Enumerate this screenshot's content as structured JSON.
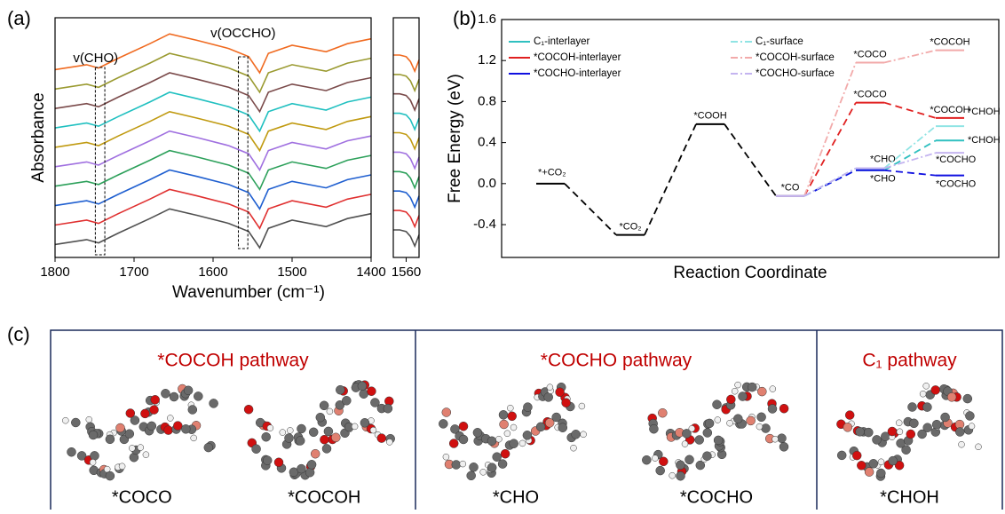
{
  "panel_labels": [
    "(a)",
    "(b)",
    "(c)"
  ],
  "chart_data": [
    {
      "type": "line",
      "x_label": "Wavenumber (cm⁻¹)",
      "y_label": "Absorbance",
      "xlim": [
        1800,
        1400
      ],
      "xticks": [
        1800,
        1700,
        1600,
        1500,
        1400
      ],
      "ylim": [
        -0.8,
        14
      ],
      "x": [
        1800,
        1760,
        1745,
        1720,
        1680,
        1655,
        1620,
        1580,
        1555,
        1541,
        1530,
        1500,
        1457,
        1430,
        1400
      ],
      "series": [
        {
          "color": "#505050",
          "values": [
            0,
            0.3,
            0.1,
            0.7,
            1.6,
            2.2,
            1.8,
            1.3,
            0.8,
            -0.2,
            1,
            1.5,
            1.1,
            1.6,
            1.9
          ]
        },
        {
          "color": "#e03030",
          "values": [
            1.2,
            1.5,
            1.3,
            1.9,
            2.8,
            3.4,
            3,
            2.5,
            2,
            1,
            2.2,
            2.7,
            2.3,
            2.8,
            3.1
          ]
        },
        {
          "color": "#1f5fd0",
          "values": [
            2.4,
            2.7,
            2.5,
            3.1,
            4,
            4.6,
            4.2,
            3.7,
            3.2,
            2.2,
            3.4,
            3.9,
            3.5,
            4,
            4.3
          ]
        },
        {
          "color": "#2ca05a",
          "values": [
            3.6,
            3.9,
            3.7,
            4.3,
            5.2,
            5.8,
            5.4,
            4.9,
            4.4,
            3.4,
            4.6,
            5.1,
            4.7,
            5.2,
            5.5
          ]
        },
        {
          "color": "#a070e0",
          "values": [
            4.8,
            5.1,
            4.9,
            5.5,
            6.4,
            7,
            6.6,
            6.1,
            5.6,
            4.6,
            5.8,
            6.3,
            5.9,
            6.4,
            6.7
          ]
        },
        {
          "color": "#c09a10",
          "values": [
            6,
            6.3,
            6.1,
            6.7,
            7.6,
            8.2,
            7.8,
            7.3,
            6.8,
            5.8,
            7,
            7.5,
            7.1,
            7.6,
            7.9
          ]
        },
        {
          "color": "#20c0c0",
          "values": [
            7.2,
            7.5,
            7.3,
            7.9,
            8.8,
            9.4,
            9,
            8.5,
            8,
            7,
            8.2,
            8.7,
            8.3,
            8.8,
            9.1
          ]
        },
        {
          "color": "#7a4a4a",
          "values": [
            8.4,
            8.7,
            8.5,
            9.1,
            10,
            10.6,
            10.2,
            9.7,
            9.2,
            8.2,
            9.4,
            9.9,
            9.5,
            10,
            10.3
          ]
        },
        {
          "color": "#9a9a30",
          "values": [
            9.6,
            9.9,
            9.7,
            10.3,
            11.2,
            11.8,
            11.4,
            10.9,
            10.4,
            9.4,
            10.6,
            11.1,
            10.7,
            11.2,
            11.5
          ]
        },
        {
          "color": "#f06a20",
          "values": [
            10.8,
            11.1,
            10.9,
            11.5,
            12.4,
            13,
            12.6,
            12.1,
            11.6,
            10.6,
            11.8,
            12.3,
            11.9,
            12.4,
            12.7
          ]
        }
      ],
      "annotations": [
        {
          "text": "v(CHO)",
          "x_range": [
            1749,
            1737
          ]
        },
        {
          "text": "v(OCCHO)",
          "x_range": [
            1568,
            1556
          ]
        }
      ]
    },
    {
      "type": "line",
      "xlim": [
        1572,
        1548
      ],
      "xticks": [
        1560
      ],
      "ylim": [
        -0.8,
        14
      ],
      "x": [
        1572,
        1566,
        1560,
        1556,
        1552,
        1548
      ],
      "series": [
        {
          "color": "#505050",
          "values": [
            0.9,
            0.9,
            0.8,
            0.5,
            -0.1,
            0.6
          ]
        },
        {
          "color": "#e03030",
          "values": [
            2.1,
            2.1,
            2,
            1.7,
            1.1,
            1.8
          ]
        },
        {
          "color": "#1f5fd0",
          "values": [
            3.3,
            3.3,
            3.2,
            2.9,
            2.3,
            3
          ]
        },
        {
          "color": "#2ca05a",
          "values": [
            4.5,
            4.5,
            4.4,
            4.1,
            3.5,
            4.2
          ]
        },
        {
          "color": "#a070e0",
          "values": [
            5.7,
            5.7,
            5.6,
            5.3,
            4.7,
            5.4
          ]
        },
        {
          "color": "#c09a10",
          "values": [
            6.9,
            6.9,
            6.8,
            6.5,
            5.9,
            6.6
          ]
        },
        {
          "color": "#20c0c0",
          "values": [
            8.1,
            8.1,
            8,
            7.7,
            7.1,
            7.8
          ]
        },
        {
          "color": "#7a4a4a",
          "values": [
            9.3,
            9.3,
            9.2,
            8.9,
            8.3,
            9
          ]
        },
        {
          "color": "#9a9a30",
          "values": [
            10.5,
            10.5,
            10.4,
            10.1,
            9.5,
            10.2
          ]
        },
        {
          "color": "#f06a20",
          "values": [
            11.7,
            11.7,
            11.6,
            11.3,
            10.7,
            11.4
          ]
        }
      ]
    },
    {
      "type": "energy",
      "x_label": "Reaction Coordinate",
      "y_label": "Free Energy (eV)",
      "ylim": [
        -0.72,
        1.6
      ],
      "yticks": [
        -0.4,
        {
          "value": 0,
          "label": "0.0"
        },
        0.4,
        0.8,
        1.2,
        1.6
      ],
      "categories": [
        null,
        null,
        null,
        null,
        null,
        null
      ],
      "series": [
        {
          "color": "#000000",
          "line_style": "dashed",
          "values": [
            0,
            -0.5,
            0.58,
            -0.12,
            null,
            null
          ],
          "point_labels": [
            "*+CO₂",
            "*CO₂",
            "*COOH",
            "*CO",
            null,
            null
          ]
        },
        {
          "name": "C₁-interlayer",
          "color": "#30c0c0",
          "line_style": "dashed",
          "values": [
            null,
            null,
            null,
            -0.12,
            0.13,
            0.42
          ],
          "point_labels": [
            null,
            null,
            null,
            null,
            "*CHO",
            "*CHOH"
          ]
        },
        {
          "name": "*COCOH-interlayer",
          "color": "#e02020",
          "line_style": "dashed",
          "values": [
            null,
            null,
            null,
            -0.12,
            0.79,
            0.64
          ],
          "point_labels": [
            null,
            null,
            null,
            null,
            "*COCO",
            "*COCOH"
          ]
        },
        {
          "name": "*COCHO-interlayer",
          "color": "#1010e0",
          "line_style": "dashed",
          "values": [
            null,
            null,
            null,
            -0.12,
            0.13,
            0.08
          ],
          "point_labels": [
            null,
            null,
            null,
            null,
            null,
            "*COCHO"
          ]
        },
        {
          "name": "C₁-surface",
          "color": "#90e4e4",
          "line_style": "dash-dot",
          "values": [
            null,
            null,
            null,
            -0.12,
            0.15,
            0.56
          ],
          "point_labels": [
            null,
            null,
            null,
            null,
            "*CHO",
            "*CHOH"
          ]
        },
        {
          "name": "*COCOH-surface",
          "color": "#f2aaaa",
          "line_style": "dash-dot",
          "values": [
            null,
            null,
            null,
            -0.12,
            1.18,
            1.3
          ],
          "point_labels": [
            null,
            null,
            null,
            null,
            "*COCO",
            "*COCOH"
          ]
        },
        {
          "name": "*COCHO-surface",
          "color": "#c4b4f0",
          "line_style": "dash-dot",
          "values": [
            null,
            null,
            null,
            -0.12,
            0.15,
            0.3
          ],
          "point_labels": [
            null,
            null,
            null,
            null,
            null,
            "*COCHO"
          ]
        }
      ]
    }
  ],
  "structures": {
    "pathways": [
      {
        "title": "*COCOH pathway",
        "captions": [
          "*COCO",
          "*COCOH"
        ]
      },
      {
        "title": "*COCHO pathway",
        "captions": [
          "*CHO",
          "*COCHO"
        ]
      },
      {
        "title": "C₁ pathway",
        "captions": [
          "*CHOH"
        ]
      }
    ]
  }
}
